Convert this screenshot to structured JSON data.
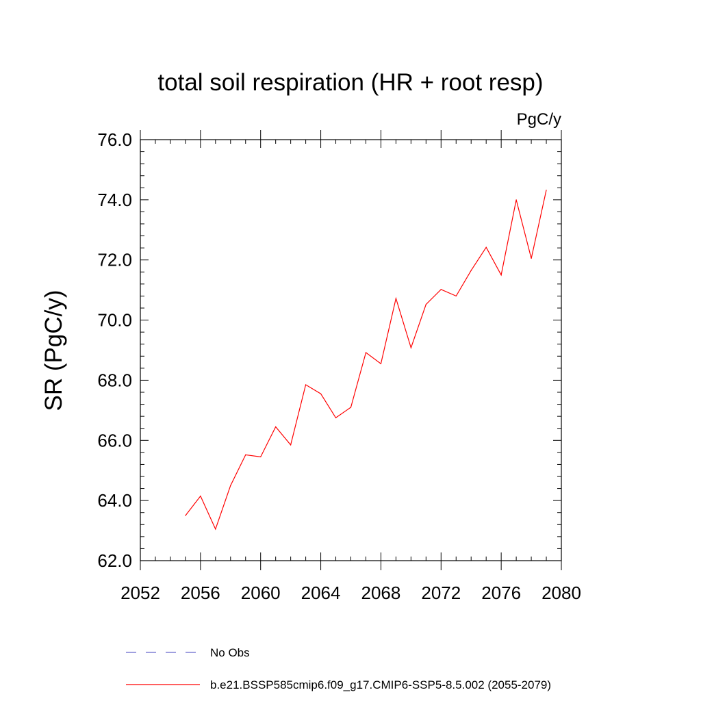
{
  "chart_data": {
    "type": "line",
    "title": "total soil respiration (HR + root resp)",
    "units": "PgC/y",
    "xlabel": "",
    "ylabel": "SR  (PgC/y)",
    "xlim": [
      2052,
      2080
    ],
    "ylim": [
      62.0,
      76.0
    ],
    "x_ticks": [
      2052,
      2056,
      2060,
      2064,
      2068,
      2072,
      2076,
      2080
    ],
    "x_tick_labels": [
      "2052",
      "2056",
      "2060",
      "2064",
      "2068",
      "2072",
      "2076",
      "2080"
    ],
    "y_ticks": [
      62,
      64,
      66,
      68,
      70,
      72,
      74,
      76
    ],
    "y_tick_labels": [
      "62.0",
      "64.0",
      "66.0",
      "68.0",
      "70.0",
      "72.0",
      "74.0",
      "76.0"
    ],
    "grid": false,
    "series": [
      {
        "name": "No Obs",
        "color": "#6666cc",
        "style": "dashed",
        "x": [],
        "values": []
      },
      {
        "name": "b.e21.BSSP585cmip6.f09_g17.CMIP6-SSP5-8.5.002 (2055-2079)",
        "color": "#ff0000",
        "style": "solid",
        "x": [
          2055,
          2056,
          2057,
          2058,
          2059,
          2060,
          2061,
          2062,
          2063,
          2064,
          2065,
          2066,
          2067,
          2068,
          2069,
          2070,
          2071,
          2072,
          2073,
          2074,
          2075,
          2076,
          2077,
          2078,
          2079
        ],
        "values": [
          63.5,
          64.15,
          63.05,
          64.5,
          65.52,
          65.45,
          66.45,
          65.85,
          67.85,
          67.55,
          66.75,
          67.1,
          68.92,
          68.55,
          70.72,
          69.08,
          70.52,
          71.02,
          70.8,
          71.65,
          72.42,
          71.5,
          74.0,
          72.05,
          74.32
        ]
      }
    ],
    "legend_position": "bottom-left"
  }
}
